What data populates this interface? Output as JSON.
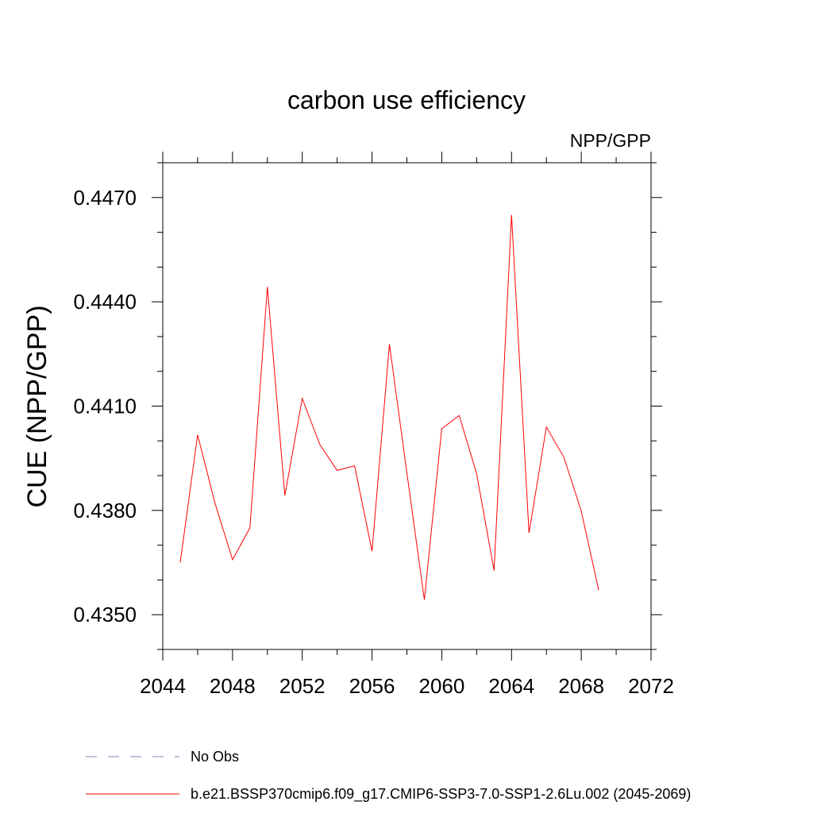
{
  "chart_data": {
    "type": "line",
    "title": "carbon use efficiency",
    "subtitle": "NPP/GPP",
    "xlabel": "",
    "ylabel": "CUE  (NPP/GPP)",
    "xlim": [
      2044,
      2072
    ],
    "ylim": [
      0.434,
      0.448
    ],
    "x_ticks": [
      2044,
      2048,
      2052,
      2056,
      2060,
      2064,
      2068,
      2072
    ],
    "x_tick_labels": [
      "2044",
      "2048",
      "2052",
      "2056",
      "2060",
      "2064",
      "2068",
      "2072"
    ],
    "y_ticks": [
      0.435,
      0.438,
      0.441,
      0.444,
      0.447
    ],
    "y_tick_labels": [
      "0.4350",
      "0.4380",
      "0.4410",
      "0.4440",
      "0.4470"
    ],
    "grid": false,
    "legend_position": "bottom",
    "series": [
      {
        "name": "b.e21.BSSP370cmip6.f09_g17.CMIP6-SSP3-7.0-SSP1-2.6Lu.002 (2045-2069)",
        "color": "#ff0000",
        "style": "solid",
        "x": [
          2045,
          2046,
          2047,
          2048,
          2049,
          2050,
          2051,
          2052,
          2053,
          2054,
          2055,
          2056,
          2057,
          2058,
          2059,
          2060,
          2061,
          2062,
          2063,
          2064,
          2065,
          2066,
          2067,
          2068,
          2069
        ],
        "y": [
          0.4365,
          0.44017,
          0.4382,
          0.43658,
          0.4375,
          0.44443,
          0.43843,
          0.44122,
          0.4399,
          0.43915,
          0.43928,
          0.43683,
          0.44278,
          0.43908,
          0.43543,
          0.44035,
          0.44073,
          0.43905,
          0.43627,
          0.4465,
          0.43735,
          0.4404,
          0.43953,
          0.43798,
          0.4357
        ]
      }
    ],
    "legend": [
      {
        "label": "No Obs",
        "color": "#8a7fbf",
        "style": "dashed"
      },
      {
        "label": "b.e21.BSSP370cmip6.f09_g17.CMIP6-SSP3-7.0-SSP1-2.6Lu.002 (2045-2069)",
        "color": "#ff0000",
        "style": "solid"
      }
    ]
  }
}
